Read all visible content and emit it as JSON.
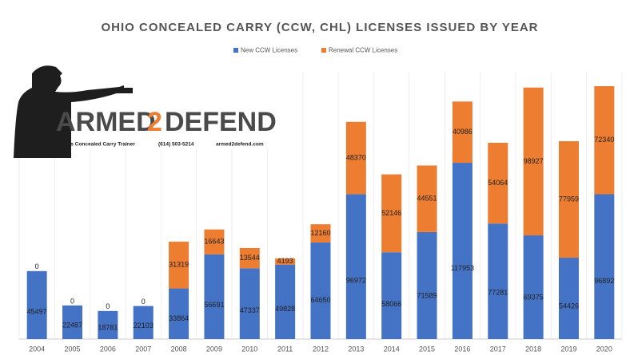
{
  "chart_data": {
    "type": "stacked-bar",
    "title": "OHIO CONCEALED CARRY (CCW, CHL) LICENSES ISSUED BY YEAR",
    "categories": [
      "2004",
      "2005",
      "2006",
      "2007",
      "2008",
      "2009",
      "2010",
      "2011",
      "2012",
      "2013",
      "2014",
      "2015",
      "2016",
      "2017",
      "2018",
      "2019",
      "2020"
    ],
    "series": [
      {
        "name": "New CCW Licenses",
        "color": "#4472c4",
        "values": [
          45497,
          22487,
          18781,
          22103,
          33864,
          56691,
          47337,
          49828,
          64650,
          96972,
          58066,
          71589,
          117953,
          77281,
          69375,
          54426,
          96892
        ]
      },
      {
        "name": "Renewal CCW Licenses",
        "color": "#ed7d31",
        "values": [
          0,
          0,
          0,
          0,
          31319,
          16643,
          13544,
          4193,
          12160,
          48370,
          52146,
          44551,
          40986,
          54064,
          98927,
          77959,
          72340
        ]
      }
    ],
    "legend": "top"
  },
  "logo": {
    "word1": "ARMED",
    "word2": "2",
    "word3": "DEFEND",
    "tagline": "Ohio's Concealed Carry Trainer",
    "phone": "(614) 503-5214",
    "site": "armed2defend.com"
  }
}
